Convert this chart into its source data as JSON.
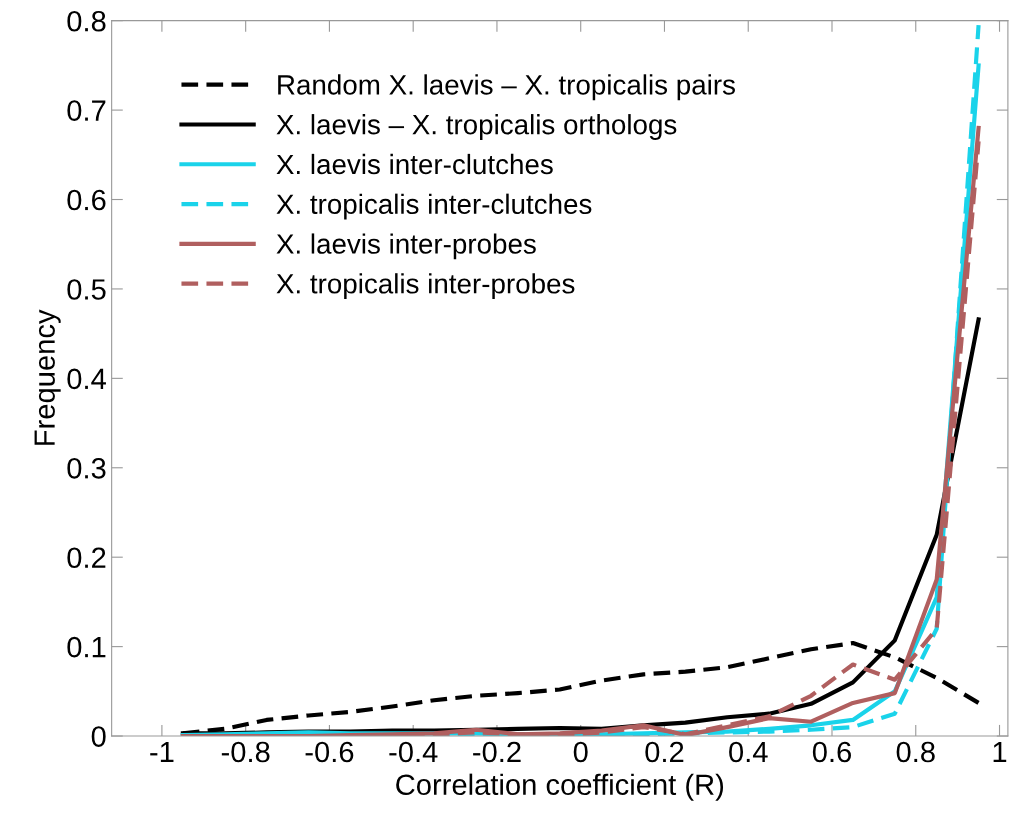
{
  "chart_data": {
    "type": "line",
    "xlabel": "Correlation coefficient (R)",
    "ylabel": "Frequency",
    "x": [
      -0.95,
      -0.85,
      -0.75,
      -0.65,
      -0.55,
      -0.45,
      -0.35,
      -0.25,
      -0.15,
      -0.05,
      0.05,
      0.15,
      0.25,
      0.35,
      0.45,
      0.55,
      0.65,
      0.75,
      0.85,
      0.95
    ],
    "series": [
      {
        "name": "Random X. laevis – X. tropicalis pairs",
        "color": "#000000",
        "line_style": "dashed",
        "values": [
          0.003,
          0.008,
          0.018,
          0.023,
          0.027,
          0.033,
          0.04,
          0.045,
          0.048,
          0.052,
          0.062,
          0.069,
          0.072,
          0.077,
          0.087,
          0.097,
          0.104,
          0.088,
          0.065,
          0.037
        ]
      },
      {
        "name": "X. laevis – X. tropicalis orthologs",
        "color": "#000000",
        "line_style": "solid",
        "values": [
          0.003,
          0.003,
          0.004,
          0.005,
          0.005,
          0.006,
          0.006,
          0.007,
          0.008,
          0.009,
          0.008,
          0.012,
          0.015,
          0.021,
          0.025,
          0.036,
          0.06,
          0.107,
          0.225,
          0.466
        ]
      },
      {
        "name": "X. laevis inter-clutches",
        "color": "#1ad3ea",
        "line_style": "solid",
        "values": [
          0.001,
          0.002,
          0.003,
          0.004,
          0.003,
          0.003,
          0.003,
          0.003,
          0.002,
          0.002,
          0.002,
          0.003,
          0.004,
          0.005,
          0.008,
          0.012,
          0.018,
          0.05,
          0.155,
          0.75
        ]
      },
      {
        "name": "X. tropicalis inter-clutches",
        "color": "#1ad3ea",
        "line_style": "dashed",
        "values": [
          0.001,
          0.001,
          0.001,
          0.001,
          0.001,
          0.001,
          0.001,
          0.001,
          0.001,
          0.001,
          0.001,
          0.002,
          0.003,
          0.004,
          0.005,
          0.007,
          0.01,
          0.025,
          0.12,
          0.795
        ]
      },
      {
        "name": "X. laevis inter-probes",
        "color": "#b05f5f",
        "line_style": "solid",
        "values": [
          0.0,
          0.0,
          0.0,
          0.0,
          0.001,
          0.002,
          0.003,
          0.007,
          0.002,
          0.003,
          0.006,
          0.012,
          0.001,
          0.01,
          0.02,
          0.016,
          0.037,
          0.048,
          0.175,
          0.68
        ]
      },
      {
        "name": "X. tropicalis inter-probes",
        "color": "#b05f5f",
        "line_style": "dashed",
        "values": [
          0.0,
          0.0,
          0.0,
          0.0,
          0.0,
          0.001,
          0.002,
          0.004,
          0.002,
          0.001,
          0.004,
          0.01,
          0.002,
          0.012,
          0.022,
          0.045,
          0.08,
          0.063,
          0.12,
          0.665
        ]
      }
    ],
    "xlim": [
      -1.12,
      1.02
    ],
    "ylim": [
      0,
      0.8
    ],
    "xticks": [
      -1,
      -0.8,
      -0.6,
      -0.4,
      -0.2,
      0,
      0.2,
      0.4,
      0.6,
      0.8,
      1
    ],
    "yticks": [
      0,
      0.1,
      0.2,
      0.3,
      0.4,
      0.5,
      0.6,
      0.7,
      0.8
    ],
    "legend": "top left",
    "grid": false,
    "marker": "none"
  }
}
